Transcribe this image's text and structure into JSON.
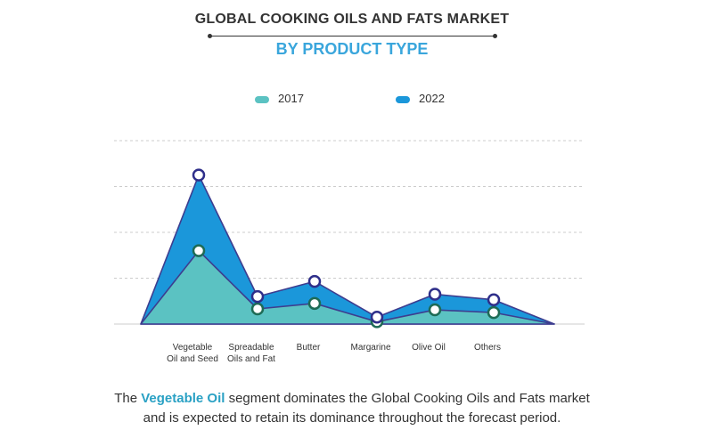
{
  "title": "GLOBAL COOKING OILS AND FATS MARKET",
  "subtitle": "BY PRODUCT TYPE",
  "colors": {
    "series_2017_fill": "#5bc2c2",
    "series_2022_fill": "#1b97da",
    "outline": "#3d3d8f",
    "marker_2017": "#1e6b55",
    "marker_2022": "#2f2f8a",
    "grid": "#cccccc",
    "accent_text": "#2aa1c4"
  },
  "chart_data": {
    "type": "area",
    "categories": [
      "Vegetable Oil and Seed",
      "Spreadable Oils and Fat",
      "Butter",
      "Margarine",
      "Olive Oil",
      "Others"
    ],
    "category_label_lines": [
      [
        "Vegetable",
        "Oil and Seed"
      ],
      [
        "Spreadable",
        "Oils and Fat"
      ],
      [
        "Butter"
      ],
      [
        "Margarine"
      ],
      [
        "Olive Oil"
      ],
      [
        "Others"
      ]
    ],
    "series": [
      {
        "name": "2017",
        "values": [
          1.6,
          0.33,
          0.45,
          0.05,
          0.31,
          0.25
        ]
      },
      {
        "name": "2022",
        "values": [
          3.25,
          0.6,
          0.93,
          0.15,
          0.65,
          0.53
        ]
      }
    ],
    "ylim": [
      0,
      4
    ],
    "grid": true,
    "legend_position": "top-center"
  },
  "footer": {
    "before": "The ",
    "highlight": "Vegetable Oil",
    "after": " segment dominates the Global Cooking Oils and Fats market",
    "line2": "and is expected to retain its dominance throughout the forecast period."
  }
}
